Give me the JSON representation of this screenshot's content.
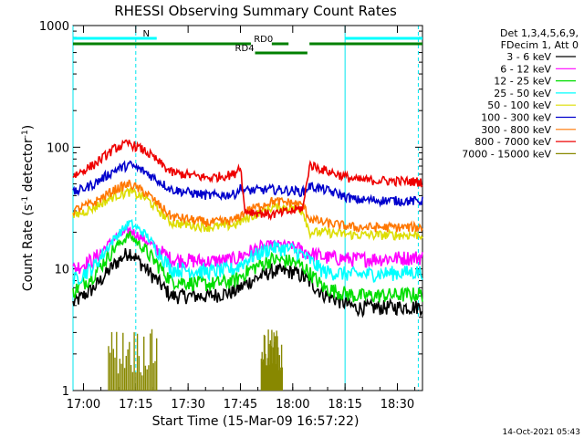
{
  "chart_data": {
    "type": "line",
    "title": "RHESSI Observing Summary Count Rates",
    "xlabel": "Start Time (15-Mar-09 16:57:22)",
    "ylabel_main": "Count Rate (s",
    "ylabel_sup1": "-1",
    "ylabel_mid": " detector",
    "ylabel_sup2": "-1",
    "ylabel_end": ")",
    "y_scale": "log",
    "ylim": [
      1,
      1000
    ],
    "xlim_minutes": [
      16.95,
      18.62
    ],
    "x_ticks": [
      {
        "value": 17.0,
        "label": "17:00"
      },
      {
        "value": 17.25,
        "label": "17:15"
      },
      {
        "value": 17.5,
        "label": "17:30"
      },
      {
        "value": 17.75,
        "label": "17:45"
      },
      {
        "value": 18.0,
        "label": "18:00"
      },
      {
        "value": 18.25,
        "label": "18:15"
      },
      {
        "value": 18.5,
        "label": "18:30"
      }
    ],
    "y_ticks": [
      {
        "value": 1,
        "label": "1"
      },
      {
        "value": 10,
        "label": "10"
      },
      {
        "value": 100,
        "label": "100"
      },
      {
        "value": 1000,
        "label": "1000"
      }
    ],
    "legend_header": [
      "Det 1,3,4,5,6,9,",
      "FDecim 1, Att 0"
    ],
    "legend_position": "right",
    "series": [
      {
        "name": "3 - 6 keV",
        "color": "#000000",
        "points": [
          [
            16.95,
            5.2
          ],
          [
            17.05,
            7
          ],
          [
            17.15,
            11
          ],
          [
            17.22,
            14
          ],
          [
            17.3,
            10
          ],
          [
            17.42,
            6
          ],
          [
            17.6,
            6
          ],
          [
            17.72,
            6.5
          ],
          [
            17.8,
            8
          ],
          [
            17.9,
            9.6
          ],
          [
            18.0,
            9.5
          ],
          [
            18.05,
            8.6
          ],
          [
            18.15,
            6.2
          ],
          [
            18.3,
            4.8
          ],
          [
            18.62,
            4.9
          ]
        ]
      },
      {
        "name": "6 - 12 keV",
        "color": "#ff00ff",
        "points": [
          [
            16.95,
            10
          ],
          [
            17.05,
            12
          ],
          [
            17.15,
            18
          ],
          [
            17.22,
            21
          ],
          [
            17.3,
            17
          ],
          [
            17.42,
            12
          ],
          [
            17.6,
            11.5
          ],
          [
            17.72,
            12
          ],
          [
            17.8,
            14
          ],
          [
            17.9,
            16
          ],
          [
            18.0,
            15.5
          ],
          [
            18.05,
            14
          ],
          [
            18.15,
            12.5
          ],
          [
            18.3,
            12
          ],
          [
            18.62,
            12.5
          ]
        ]
      },
      {
        "name": "12 - 25 keV",
        "color": "#00dd00",
        "points": [
          [
            16.95,
            6.5
          ],
          [
            17.05,
            9
          ],
          [
            17.15,
            15
          ],
          [
            17.22,
            19
          ],
          [
            17.3,
            14
          ],
          [
            17.42,
            8
          ],
          [
            17.6,
            7.5
          ],
          [
            17.72,
            8
          ],
          [
            17.8,
            10
          ],
          [
            17.9,
            12
          ],
          [
            18.0,
            11.5
          ],
          [
            18.05,
            10.5
          ],
          [
            18.15,
            7
          ],
          [
            18.3,
            6
          ],
          [
            18.62,
            6.2
          ]
        ]
      },
      {
        "name": "25 - 50 keV",
        "color": "#00ffff",
        "points": [
          [
            16.95,
            8
          ],
          [
            17.05,
            10.5
          ],
          [
            17.15,
            18
          ],
          [
            17.22,
            24
          ],
          [
            17.3,
            19
          ],
          [
            17.42,
            10
          ],
          [
            17.6,
            9.5
          ],
          [
            17.72,
            10
          ],
          [
            17.8,
            12.5
          ],
          [
            17.9,
            15
          ],
          [
            18.0,
            14.5
          ],
          [
            18.05,
            13
          ],
          [
            18.15,
            9.5
          ],
          [
            18.3,
            9
          ],
          [
            18.62,
            9.5
          ]
        ]
      },
      {
        "name": "50 - 100 keV",
        "color": "#dddd00",
        "points": [
          [
            16.95,
            27
          ],
          [
            17.05,
            32
          ],
          [
            17.15,
            40
          ],
          [
            17.22,
            43
          ],
          [
            17.3,
            38
          ],
          [
            17.42,
            24
          ],
          [
            17.6,
            22
          ],
          [
            17.72,
            23
          ],
          [
            17.78,
            26
          ],
          [
            17.9,
            32
          ],
          [
            18.0,
            32
          ],
          [
            18.05,
            30
          ],
          [
            18.08,
            20
          ],
          [
            18.15,
            20
          ],
          [
            18.3,
            19
          ],
          [
            18.62,
            19
          ]
        ]
      },
      {
        "name": "100 - 300 keV",
        "color": "#0000cc",
        "points": [
          [
            16.95,
            42
          ],
          [
            17.05,
            50
          ],
          [
            17.15,
            65
          ],
          [
            17.22,
            72
          ],
          [
            17.3,
            62
          ],
          [
            17.42,
            45
          ],
          [
            17.6,
            40
          ],
          [
            17.72,
            41
          ],
          [
            17.75,
            46
          ],
          [
            17.78,
            44
          ],
          [
            17.9,
            45
          ],
          [
            18.0,
            44
          ],
          [
            18.05,
            43
          ],
          [
            18.08,
            48
          ],
          [
            18.15,
            45
          ],
          [
            18.3,
            37
          ],
          [
            18.62,
            36
          ]
        ]
      },
      {
        "name": "300 - 800 keV",
        "color": "#ff7700",
        "points": [
          [
            16.95,
            30
          ],
          [
            17.05,
            35
          ],
          [
            17.15,
            45
          ],
          [
            17.22,
            50
          ],
          [
            17.3,
            42
          ],
          [
            17.42,
            27
          ],
          [
            17.6,
            24
          ],
          [
            17.72,
            25
          ],
          [
            17.78,
            30
          ],
          [
            17.9,
            36
          ],
          [
            18.0,
            35
          ],
          [
            18.05,
            33
          ],
          [
            18.08,
            26
          ],
          [
            18.15,
            24
          ],
          [
            18.3,
            22
          ],
          [
            18.62,
            22
          ]
        ]
      },
      {
        "name": "800 - 7000 keV",
        "color": "#ee0000",
        "points": [
          [
            16.95,
            58
          ],
          [
            17.05,
            72
          ],
          [
            17.15,
            98
          ],
          [
            17.22,
            108
          ],
          [
            17.3,
            92
          ],
          [
            17.42,
            62
          ],
          [
            17.6,
            56
          ],
          [
            17.72,
            60
          ],
          [
            17.75,
            72
          ],
          [
            17.77,
            30
          ],
          [
            17.9,
            28
          ],
          [
            18.0,
            30
          ],
          [
            18.05,
            32
          ],
          [
            18.08,
            72
          ],
          [
            18.15,
            65
          ],
          [
            18.3,
            54
          ],
          [
            18.62,
            52
          ]
        ]
      },
      {
        "name": "7000 - 15000 keV",
        "color": "#888800",
        "points": []
      }
    ],
    "bursts": [
      {
        "series": "7000 - 15000 keV",
        "from": 17.12,
        "to": 17.35
      },
      {
        "series": "7000 - 15000 keV",
        "from": 17.85,
        "to": 17.95
      }
    ],
    "vertical_lines": [
      {
        "x": 16.95,
        "style": "solid"
      },
      {
        "x": 17.25,
        "style": "dashed"
      },
      {
        "x": 18.25,
        "style": "solid"
      },
      {
        "x": 18.6,
        "style": "dashed"
      }
    ],
    "state_bars": [
      {
        "label": "N",
        "color": "#00ffff",
        "from": 16.95,
        "to": 17.35,
        "level": "top",
        "label_at": 17.3
      },
      {
        "label": "",
        "color": "#00ffff",
        "from": 18.25,
        "to": 18.62,
        "level": "top",
        "label_at": null
      },
      {
        "label": "RD0",
        "color": "#008000",
        "from": 16.95,
        "to": 17.8,
        "level": "mid",
        "label_at": 17.86
      },
      {
        "label": "",
        "color": "#008000",
        "from": 17.9,
        "to": 17.98,
        "level": "mid",
        "label_at": null
      },
      {
        "label": "",
        "color": "#008000",
        "from": 18.08,
        "to": 18.62,
        "level": "mid",
        "label_at": null
      },
      {
        "label": "RD4",
        "color": "#008000",
        "from": 17.82,
        "to": 18.07,
        "level": "low",
        "label_at": 17.77
      }
    ]
  },
  "timestamp": "14-Oct-2021 05:43"
}
